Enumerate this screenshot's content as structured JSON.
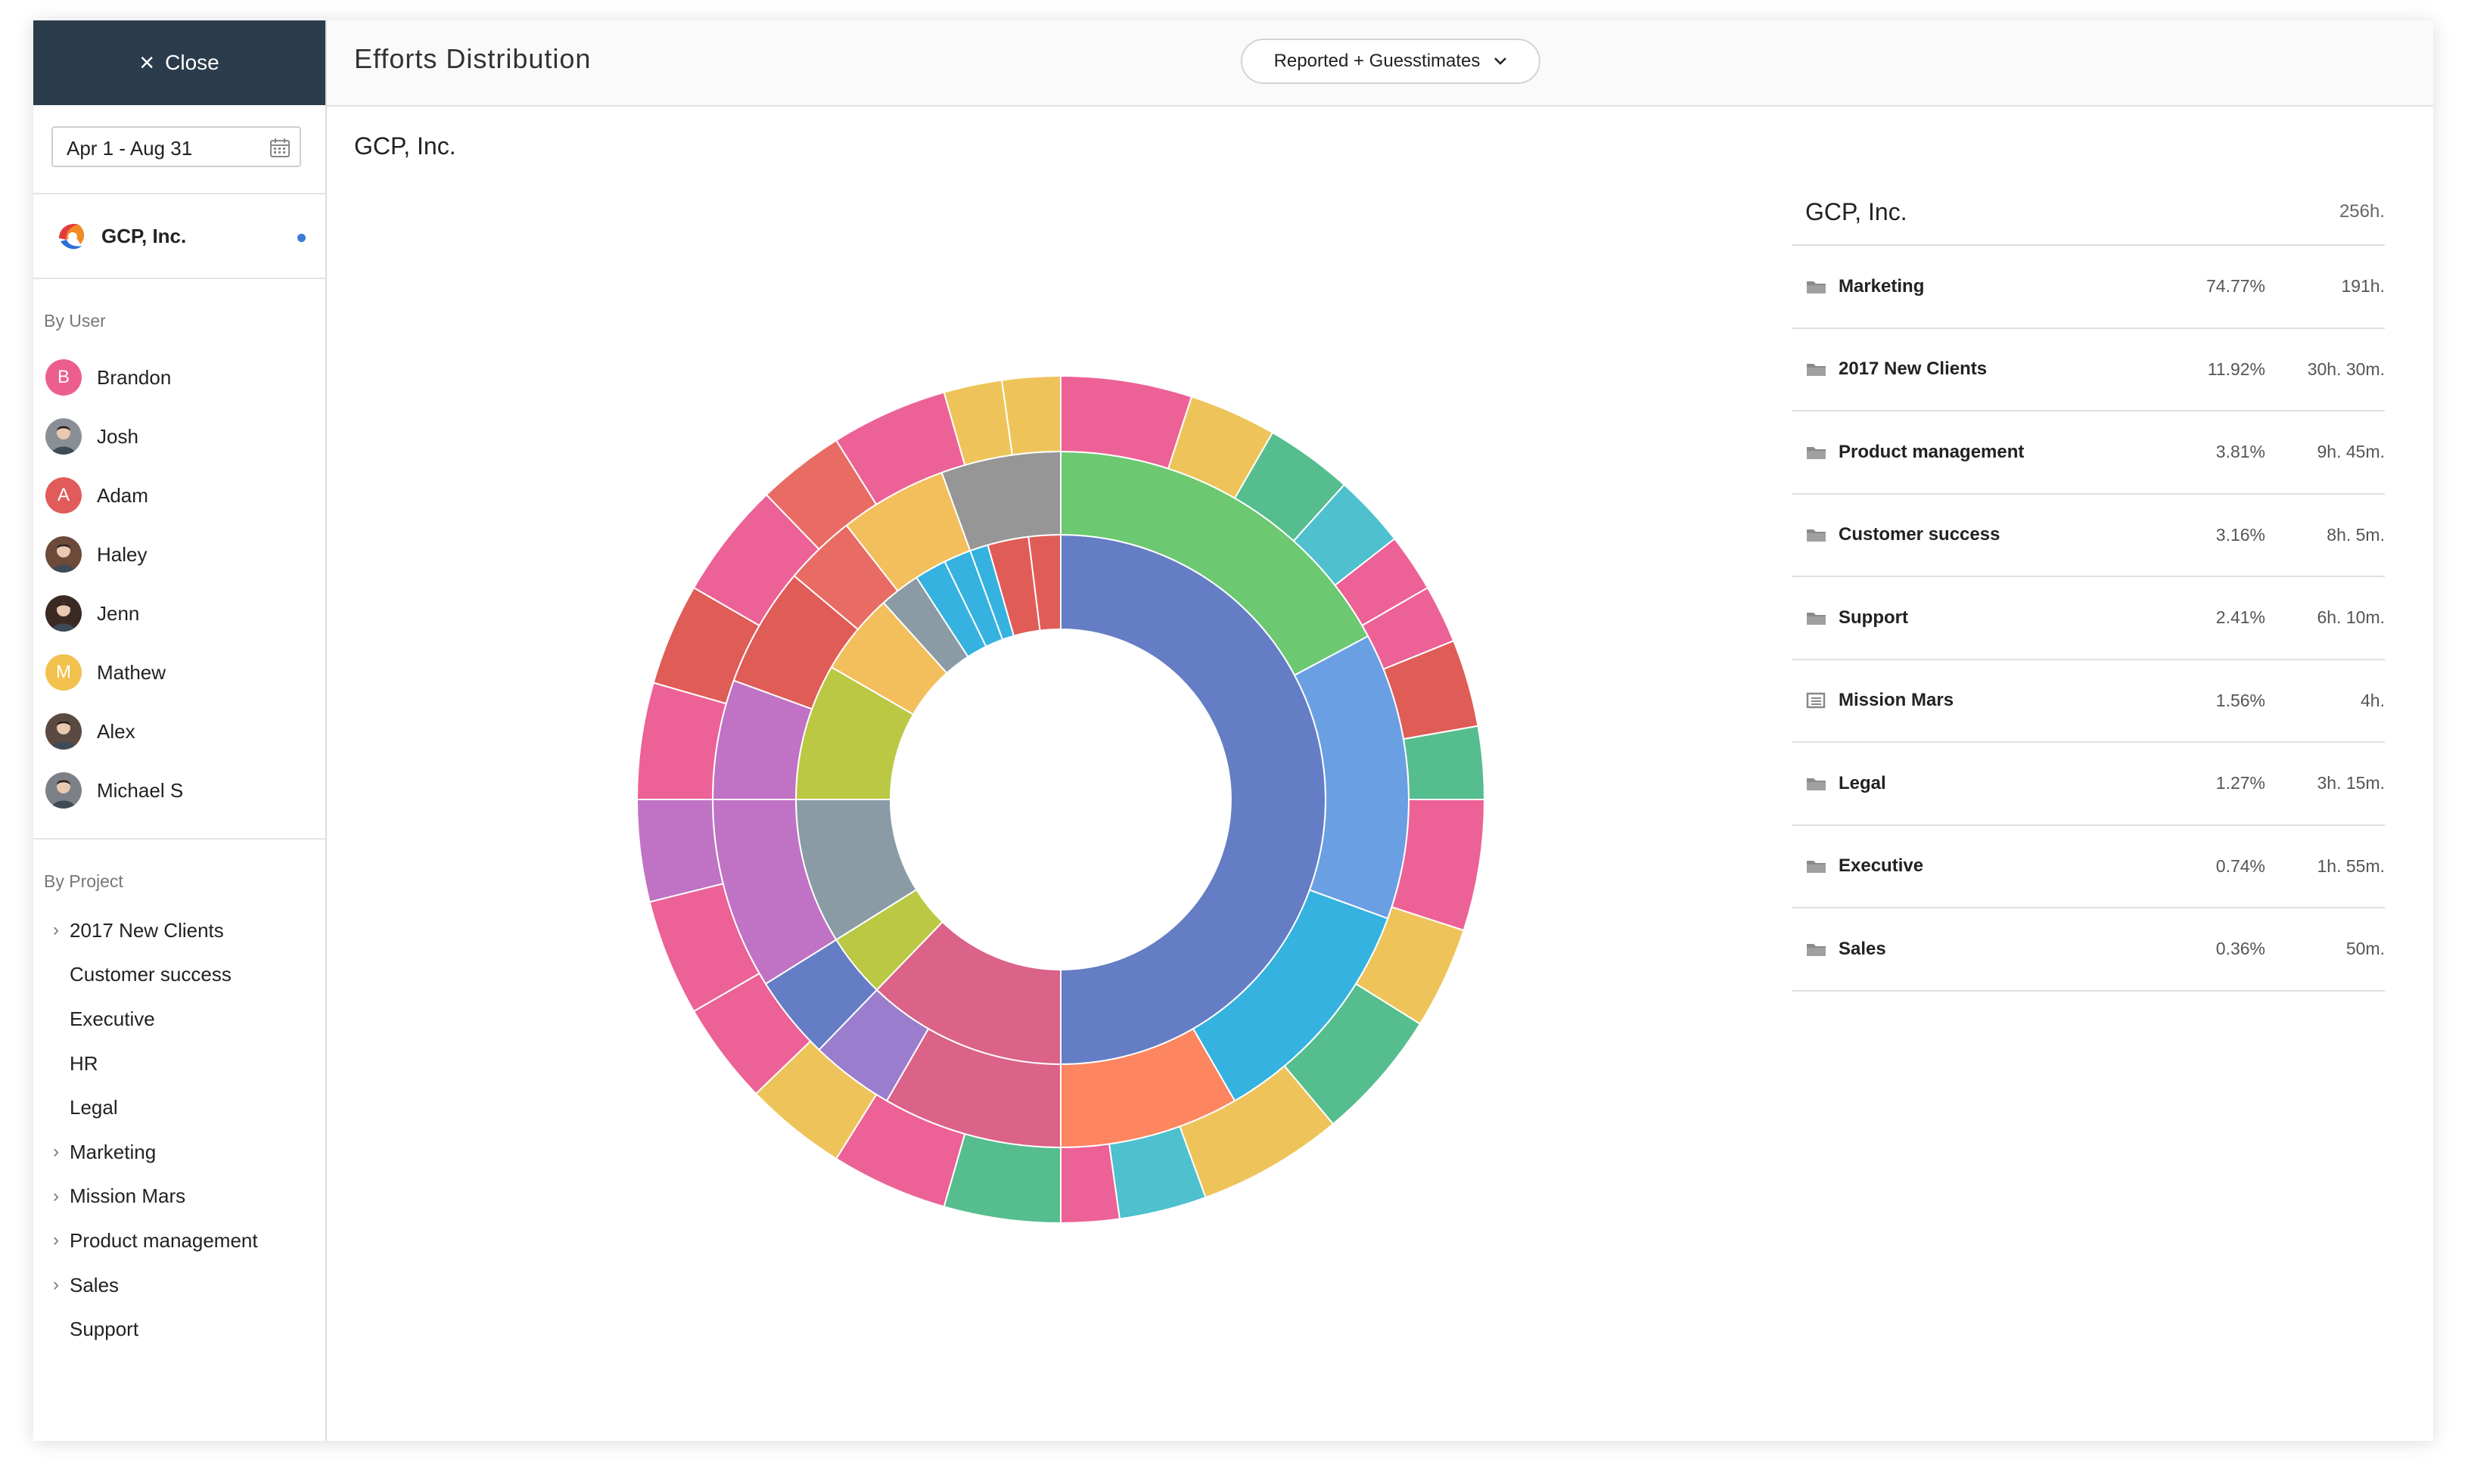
{
  "sidebar": {
    "close_label": "Close",
    "date_range": "Apr 1 - Aug 31",
    "organization": "GCP, Inc.",
    "by_user_title": "By User",
    "users": [
      {
        "name": "Brandon",
        "initial": "B",
        "color": "#ec5f8d",
        "type": "initial"
      },
      {
        "name": "Josh",
        "initial": "",
        "color": "#8a8f96",
        "type": "photo"
      },
      {
        "name": "Adam",
        "initial": "A",
        "color": "#e15b5b",
        "type": "initial"
      },
      {
        "name": "Haley",
        "initial": "",
        "color": "#6b4a3a",
        "type": "photo"
      },
      {
        "name": "Jenn",
        "initial": "",
        "color": "#3b2a24",
        "type": "photo"
      },
      {
        "name": "Mathew",
        "initial": "M",
        "color": "#f2c14e",
        "type": "initial"
      },
      {
        "name": "Alex",
        "initial": "",
        "color": "#5a4a42",
        "type": "photo"
      },
      {
        "name": "Michael S",
        "initial": "",
        "color": "#7c8188",
        "type": "photo"
      }
    ],
    "by_project_title": "By Project",
    "projects": [
      {
        "name": "2017 New Clients",
        "expandable": true
      },
      {
        "name": "Customer success",
        "expandable": false
      },
      {
        "name": "Executive",
        "expandable": false
      },
      {
        "name": "HR",
        "expandable": false
      },
      {
        "name": "Legal",
        "expandable": false
      },
      {
        "name": "Marketing",
        "expandable": true
      },
      {
        "name": "Mission Mars",
        "expandable": true
      },
      {
        "name": "Product management",
        "expandable": true
      },
      {
        "name": "Sales",
        "expandable": true
      },
      {
        "name": "Support",
        "expandable": false
      }
    ]
  },
  "header": {
    "title": "Efforts Distribution",
    "mode_selector": "Reported + Guesstimates"
  },
  "chart_heading": "GCP, Inc.",
  "summary": {
    "title": "GCP, Inc.",
    "total": "256h.",
    "rows": [
      {
        "name": "Marketing",
        "percent": "74.77%",
        "hours": "191h.",
        "icon": "folder-icon"
      },
      {
        "name": "2017 New Clients",
        "percent": "11.92%",
        "hours": "30h. 30m.",
        "icon": "folder-icon"
      },
      {
        "name": "Product management",
        "percent": "3.81%",
        "hours": "9h. 45m.",
        "icon": "folder-icon"
      },
      {
        "name": "Customer success",
        "percent": "3.16%",
        "hours": "8h. 5m.",
        "icon": "folder-icon"
      },
      {
        "name": "Support",
        "percent": "2.41%",
        "hours": "6h. 10m.",
        "icon": "folder-icon"
      },
      {
        "name": "Mission Mars",
        "percent": "1.56%",
        "hours": "4h.",
        "icon": "list-icon"
      },
      {
        "name": "Legal",
        "percent": "1.27%",
        "hours": "3h. 15m.",
        "icon": "folder-icon"
      },
      {
        "name": "Executive",
        "percent": "0.74%",
        "hours": "1h. 55m.",
        "icon": "folder-icon"
      },
      {
        "name": "Sales",
        "percent": "0.36%",
        "hours": "50m.",
        "icon": "folder-icon"
      }
    ]
  },
  "chart_data": {
    "type": "sunburst",
    "title": "GCP, Inc.",
    "total_hours": 256,
    "top_level": [
      {
        "name": "Marketing",
        "percent": 74.77
      },
      {
        "name": "2017 New Clients",
        "percent": 11.92
      },
      {
        "name": "Product management",
        "percent": 3.81
      },
      {
        "name": "Customer success",
        "percent": 3.16
      },
      {
        "name": "Support",
        "percent": 2.41
      },
      {
        "name": "Mission Mars",
        "percent": 1.56
      },
      {
        "name": "Legal",
        "percent": 1.27
      },
      {
        "name": "Executive",
        "percent": 0.74
      },
      {
        "name": "Sales",
        "percent": 0.36
      }
    ],
    "colors": {
      "blue": "#647dc4",
      "green": "#6cc871",
      "grey": "#969696",
      "light_blue": "#6a9fe4",
      "purple": "#9a7dcc",
      "pink": "#ec6196",
      "red": "#df5c57",
      "yellow": "#eec45a",
      "teal": "#56bd8e",
      "cyan": "#4ec0ce",
      "orange": "#fd855f",
      "sky": "#35b2e0",
      "rose": "#db6288",
      "olive": "#bac843",
      "slate": "#8a9ba5",
      "magenta": "#c072c4",
      "salmon": "#e86c64",
      "amber": "#f3bf5c"
    },
    "rings": [
      {
        "depth": 0,
        "segments": [
          {
            "start": 0,
            "end": 180,
            "color": "blue"
          },
          {
            "start": 180,
            "end": 224,
            "color": "rose"
          },
          {
            "start": 224,
            "end": 238,
            "color": "olive"
          },
          {
            "start": 238,
            "end": 270,
            "color": "slate"
          },
          {
            "start": 270,
            "end": 300,
            "color": "olive"
          },
          {
            "start": 300,
            "end": 318,
            "color": "amber"
          },
          {
            "start": 318,
            "end": 327,
            "color": "slate"
          },
          {
            "start": 327,
            "end": 334,
            "color": "sky"
          },
          {
            "start": 334,
            "end": 340,
            "color": "sky"
          },
          {
            "start": 340,
            "end": 344,
            "color": "sky"
          },
          {
            "start": 344,
            "end": 353,
            "color": "red"
          },
          {
            "start": 353,
            "end": 360,
            "color": "red"
          }
        ]
      },
      {
        "depth": 1,
        "segments": [
          {
            "start": 0,
            "end": 62,
            "color": "green"
          },
          {
            "start": 62,
            "end": 110,
            "color": "light_blue"
          },
          {
            "start": 110,
            "end": 150,
            "color": "sky"
          },
          {
            "start": 150,
            "end": 180,
            "color": "orange"
          },
          {
            "start": 180,
            "end": 210,
            "color": "rose"
          },
          {
            "start": 210,
            "end": 224,
            "color": "purple"
          },
          {
            "start": 224,
            "end": 238,
            "color": "blue"
          },
          {
            "start": 238,
            "end": 270,
            "color": "magenta"
          },
          {
            "start": 270,
            "end": 290,
            "color": "magenta"
          },
          {
            "start": 290,
            "end": 310,
            "color": "red"
          },
          {
            "start": 310,
            "end": 322,
            "color": "salmon"
          },
          {
            "start": 322,
            "end": 340,
            "color": "amber"
          },
          {
            "start": 340,
            "end": 360,
            "color": "grey"
          }
        ]
      },
      {
        "depth": 2,
        "segments": [
          {
            "start": 0,
            "end": 18,
            "color": "pink"
          },
          {
            "start": 18,
            "end": 30,
            "color": "yellow"
          },
          {
            "start": 30,
            "end": 42,
            "color": "teal"
          },
          {
            "start": 42,
            "end": 52,
            "color": "cyan"
          },
          {
            "start": 52,
            "end": 60,
            "color": "pink"
          },
          {
            "start": 60,
            "end": 68,
            "color": "pink"
          },
          {
            "start": 68,
            "end": 80,
            "color": "red"
          },
          {
            "start": 80,
            "end": 90,
            "color": "teal"
          },
          {
            "start": 90,
            "end": 108,
            "color": "pink"
          },
          {
            "start": 108,
            "end": 122,
            "color": "yellow"
          },
          {
            "start": 122,
            "end": 140,
            "color": "teal"
          },
          {
            "start": 140,
            "end": 160,
            "color": "yellow"
          },
          {
            "start": 160,
            "end": 172,
            "color": "cyan"
          },
          {
            "start": 172,
            "end": 180,
            "color": "pink"
          },
          {
            "start": 180,
            "end": 196,
            "color": "teal"
          },
          {
            "start": 196,
            "end": 212,
            "color": "pink"
          },
          {
            "start": 212,
            "end": 226,
            "color": "yellow"
          },
          {
            "start": 226,
            "end": 240,
            "color": "pink"
          },
          {
            "start": 240,
            "end": 256,
            "color": "pink"
          },
          {
            "start": 256,
            "end": 270,
            "color": "magenta"
          },
          {
            "start": 270,
            "end": 286,
            "color": "pink"
          },
          {
            "start": 286,
            "end": 300,
            "color": "red"
          },
          {
            "start": 300,
            "end": 316,
            "color": "pink"
          },
          {
            "start": 316,
            "end": 328,
            "color": "salmon"
          },
          {
            "start": 328,
            "end": 344,
            "color": "pink"
          },
          {
            "start": 344,
            "end": 352,
            "color": "yellow"
          },
          {
            "start": 352,
            "end": 360,
            "color": "yellow"
          }
        ]
      }
    ]
  }
}
